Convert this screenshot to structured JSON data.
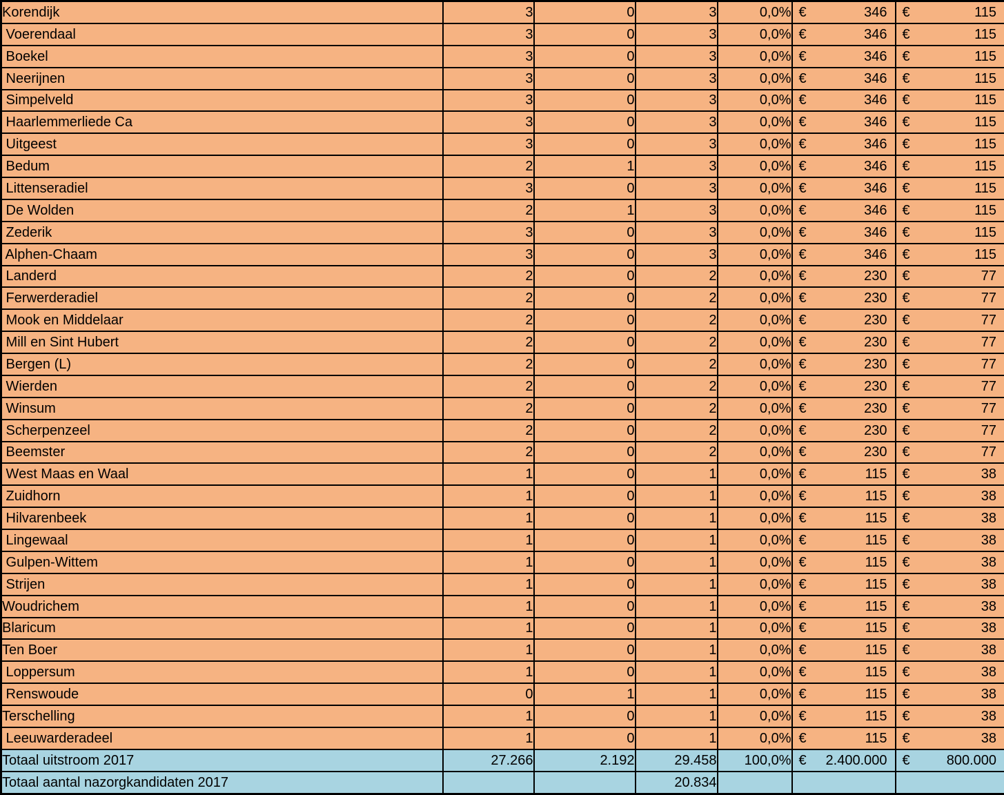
{
  "currency_symbol": "€",
  "colors": {
    "row_orange": "#F6B382",
    "row_blue": "#A8D4E1",
    "border": "#000000",
    "text": "#000000"
  },
  "table": {
    "rows": [
      {
        "name": "Korendijk",
        "v1": "3",
        "v2": "0",
        "v3": "3",
        "pct": "0,0%",
        "cur1": "346",
        "cur2": "115"
      },
      {
        "name": " Voerendaal",
        "v1": "3",
        "v2": "0",
        "v3": "3",
        "pct": "0,0%",
        "cur1": "346",
        "cur2": "115"
      },
      {
        "name": " Boekel",
        "v1": "3",
        "v2": "0",
        "v3": "3",
        "pct": "0,0%",
        "cur1": "346",
        "cur2": "115"
      },
      {
        "name": " Neerijnen",
        "v1": "3",
        "v2": "0",
        "v3": "3",
        "pct": "0,0%",
        "cur1": "346",
        "cur2": "115"
      },
      {
        "name": " Simpelveld",
        "v1": "3",
        "v2": "0",
        "v3": "3",
        "pct": "0,0%",
        "cur1": "346",
        "cur2": "115"
      },
      {
        "name": " Haarlemmerliede Ca",
        "v1": "3",
        "v2": "0",
        "v3": "3",
        "pct": "0,0%",
        "cur1": "346",
        "cur2": "115"
      },
      {
        "name": " Uitgeest",
        "v1": "3",
        "v2": "0",
        "v3": "3",
        "pct": "0,0%",
        "cur1": "346",
        "cur2": "115"
      },
      {
        "name": " Bedum",
        "v1": "2",
        "v2": "1",
        "v3": "3",
        "pct": "0,0%",
        "cur1": "346",
        "cur2": "115"
      },
      {
        "name": " Littenseradiel",
        "v1": "3",
        "v2": "0",
        "v3": "3",
        "pct": "0,0%",
        "cur1": "346",
        "cur2": "115"
      },
      {
        "name": " De Wolden",
        "v1": "2",
        "v2": "1",
        "v3": "3",
        "pct": "0,0%",
        "cur1": "346",
        "cur2": "115"
      },
      {
        "name": " Zederik",
        "v1": "3",
        "v2": "0",
        "v3": "3",
        "pct": "0,0%",
        "cur1": "346",
        "cur2": "115"
      },
      {
        "name": " Alphen-Chaam",
        "v1": "3",
        "v2": "0",
        "v3": "3",
        "pct": "0,0%",
        "cur1": "346",
        "cur2": "115"
      },
      {
        "name": " Landerd",
        "v1": "2",
        "v2": "0",
        "v3": "2",
        "pct": "0,0%",
        "cur1": "230",
        "cur2": "77"
      },
      {
        "name": " Ferwerderadiel",
        "v1": "2",
        "v2": "0",
        "v3": "2",
        "pct": "0,0%",
        "cur1": "230",
        "cur2": "77"
      },
      {
        "name": " Mook en Middelaar",
        "v1": "2",
        "v2": "0",
        "v3": "2",
        "pct": "0,0%",
        "cur1": "230",
        "cur2": "77"
      },
      {
        "name": " Mill en Sint Hubert",
        "v1": "2",
        "v2": "0",
        "v3": "2",
        "pct": "0,0%",
        "cur1": "230",
        "cur2": "77"
      },
      {
        "name": " Bergen (L)",
        "v1": "2",
        "v2": "0",
        "v3": "2",
        "pct": "0,0%",
        "cur1": "230",
        "cur2": "77"
      },
      {
        "name": " Wierden",
        "v1": "2",
        "v2": "0",
        "v3": "2",
        "pct": "0,0%",
        "cur1": "230",
        "cur2": "77"
      },
      {
        "name": " Winsum",
        "v1": "2",
        "v2": "0",
        "v3": "2",
        "pct": "0,0%",
        "cur1": "230",
        "cur2": "77"
      },
      {
        "name": " Scherpenzeel",
        "v1": "2",
        "v2": "0",
        "v3": "2",
        "pct": "0,0%",
        "cur1": "230",
        "cur2": "77"
      },
      {
        "name": " Beemster",
        "v1": "2",
        "v2": "0",
        "v3": "2",
        "pct": "0,0%",
        "cur1": "230",
        "cur2": "77"
      },
      {
        "name": " West Maas en Waal",
        "v1": "1",
        "v2": "0",
        "v3": "1",
        "pct": "0,0%",
        "cur1": "115",
        "cur2": "38"
      },
      {
        "name": " Zuidhorn",
        "v1": "1",
        "v2": "0",
        "v3": "1",
        "pct": "0,0%",
        "cur1": "115",
        "cur2": "38"
      },
      {
        "name": " Hilvarenbeek",
        "v1": "1",
        "v2": "0",
        "v3": "1",
        "pct": "0,0%",
        "cur1": "115",
        "cur2": "38"
      },
      {
        "name": " Lingewaal",
        "v1": "1",
        "v2": "0",
        "v3": "1",
        "pct": "0,0%",
        "cur1": "115",
        "cur2": "38"
      },
      {
        "name": " Gulpen-Wittem",
        "v1": "1",
        "v2": "0",
        "v3": "1",
        "pct": "0,0%",
        "cur1": "115",
        "cur2": "38"
      },
      {
        "name": " Strijen",
        "v1": "1",
        "v2": "0",
        "v3": "1",
        "pct": "0,0%",
        "cur1": "115",
        "cur2": "38"
      },
      {
        "name": "Woudrichem",
        "v1": "1",
        "v2": "0",
        "v3": "1",
        "pct": "0,0%",
        "cur1": "115",
        "cur2": "38"
      },
      {
        "name": "Blaricum",
        "v1": "1",
        "v2": "0",
        "v3": "1",
        "pct": "0,0%",
        "cur1": "115",
        "cur2": "38"
      },
      {
        "name": "Ten Boer",
        "v1": "1",
        "v2": "0",
        "v3": "1",
        "pct": "0,0%",
        "cur1": "115",
        "cur2": "38"
      },
      {
        "name": " Loppersum",
        "v1": "1",
        "v2": "0",
        "v3": "1",
        "pct": "0,0%",
        "cur1": "115",
        "cur2": "38"
      },
      {
        "name": " Renswoude",
        "v1": "0",
        "v2": "1",
        "v3": "1",
        "pct": "0,0%",
        "cur1": "115",
        "cur2": "38"
      },
      {
        "name": "Terschelling",
        "v1": "1",
        "v2": "0",
        "v3": "1",
        "pct": "0,0%",
        "cur1": "115",
        "cur2": "38"
      },
      {
        "name": " Leeuwarderadeel",
        "v1": "1",
        "v2": "0",
        "v3": "1",
        "pct": "0,0%",
        "cur1": "115",
        "cur2": "38"
      }
    ],
    "totals": [
      {
        "name": "Totaal uitstroom 2017",
        "v1": "27.266",
        "v2": "2.192",
        "v3": "29.458",
        "pct": "100,0%",
        "cur1": "2.400.000",
        "cur2": "800.000"
      },
      {
        "name": "Totaal aantal nazorgkandidaten 2017",
        "v1": "",
        "v2": "",
        "v3": "20.834",
        "pct": "",
        "cur1": "",
        "cur2": ""
      }
    ]
  }
}
